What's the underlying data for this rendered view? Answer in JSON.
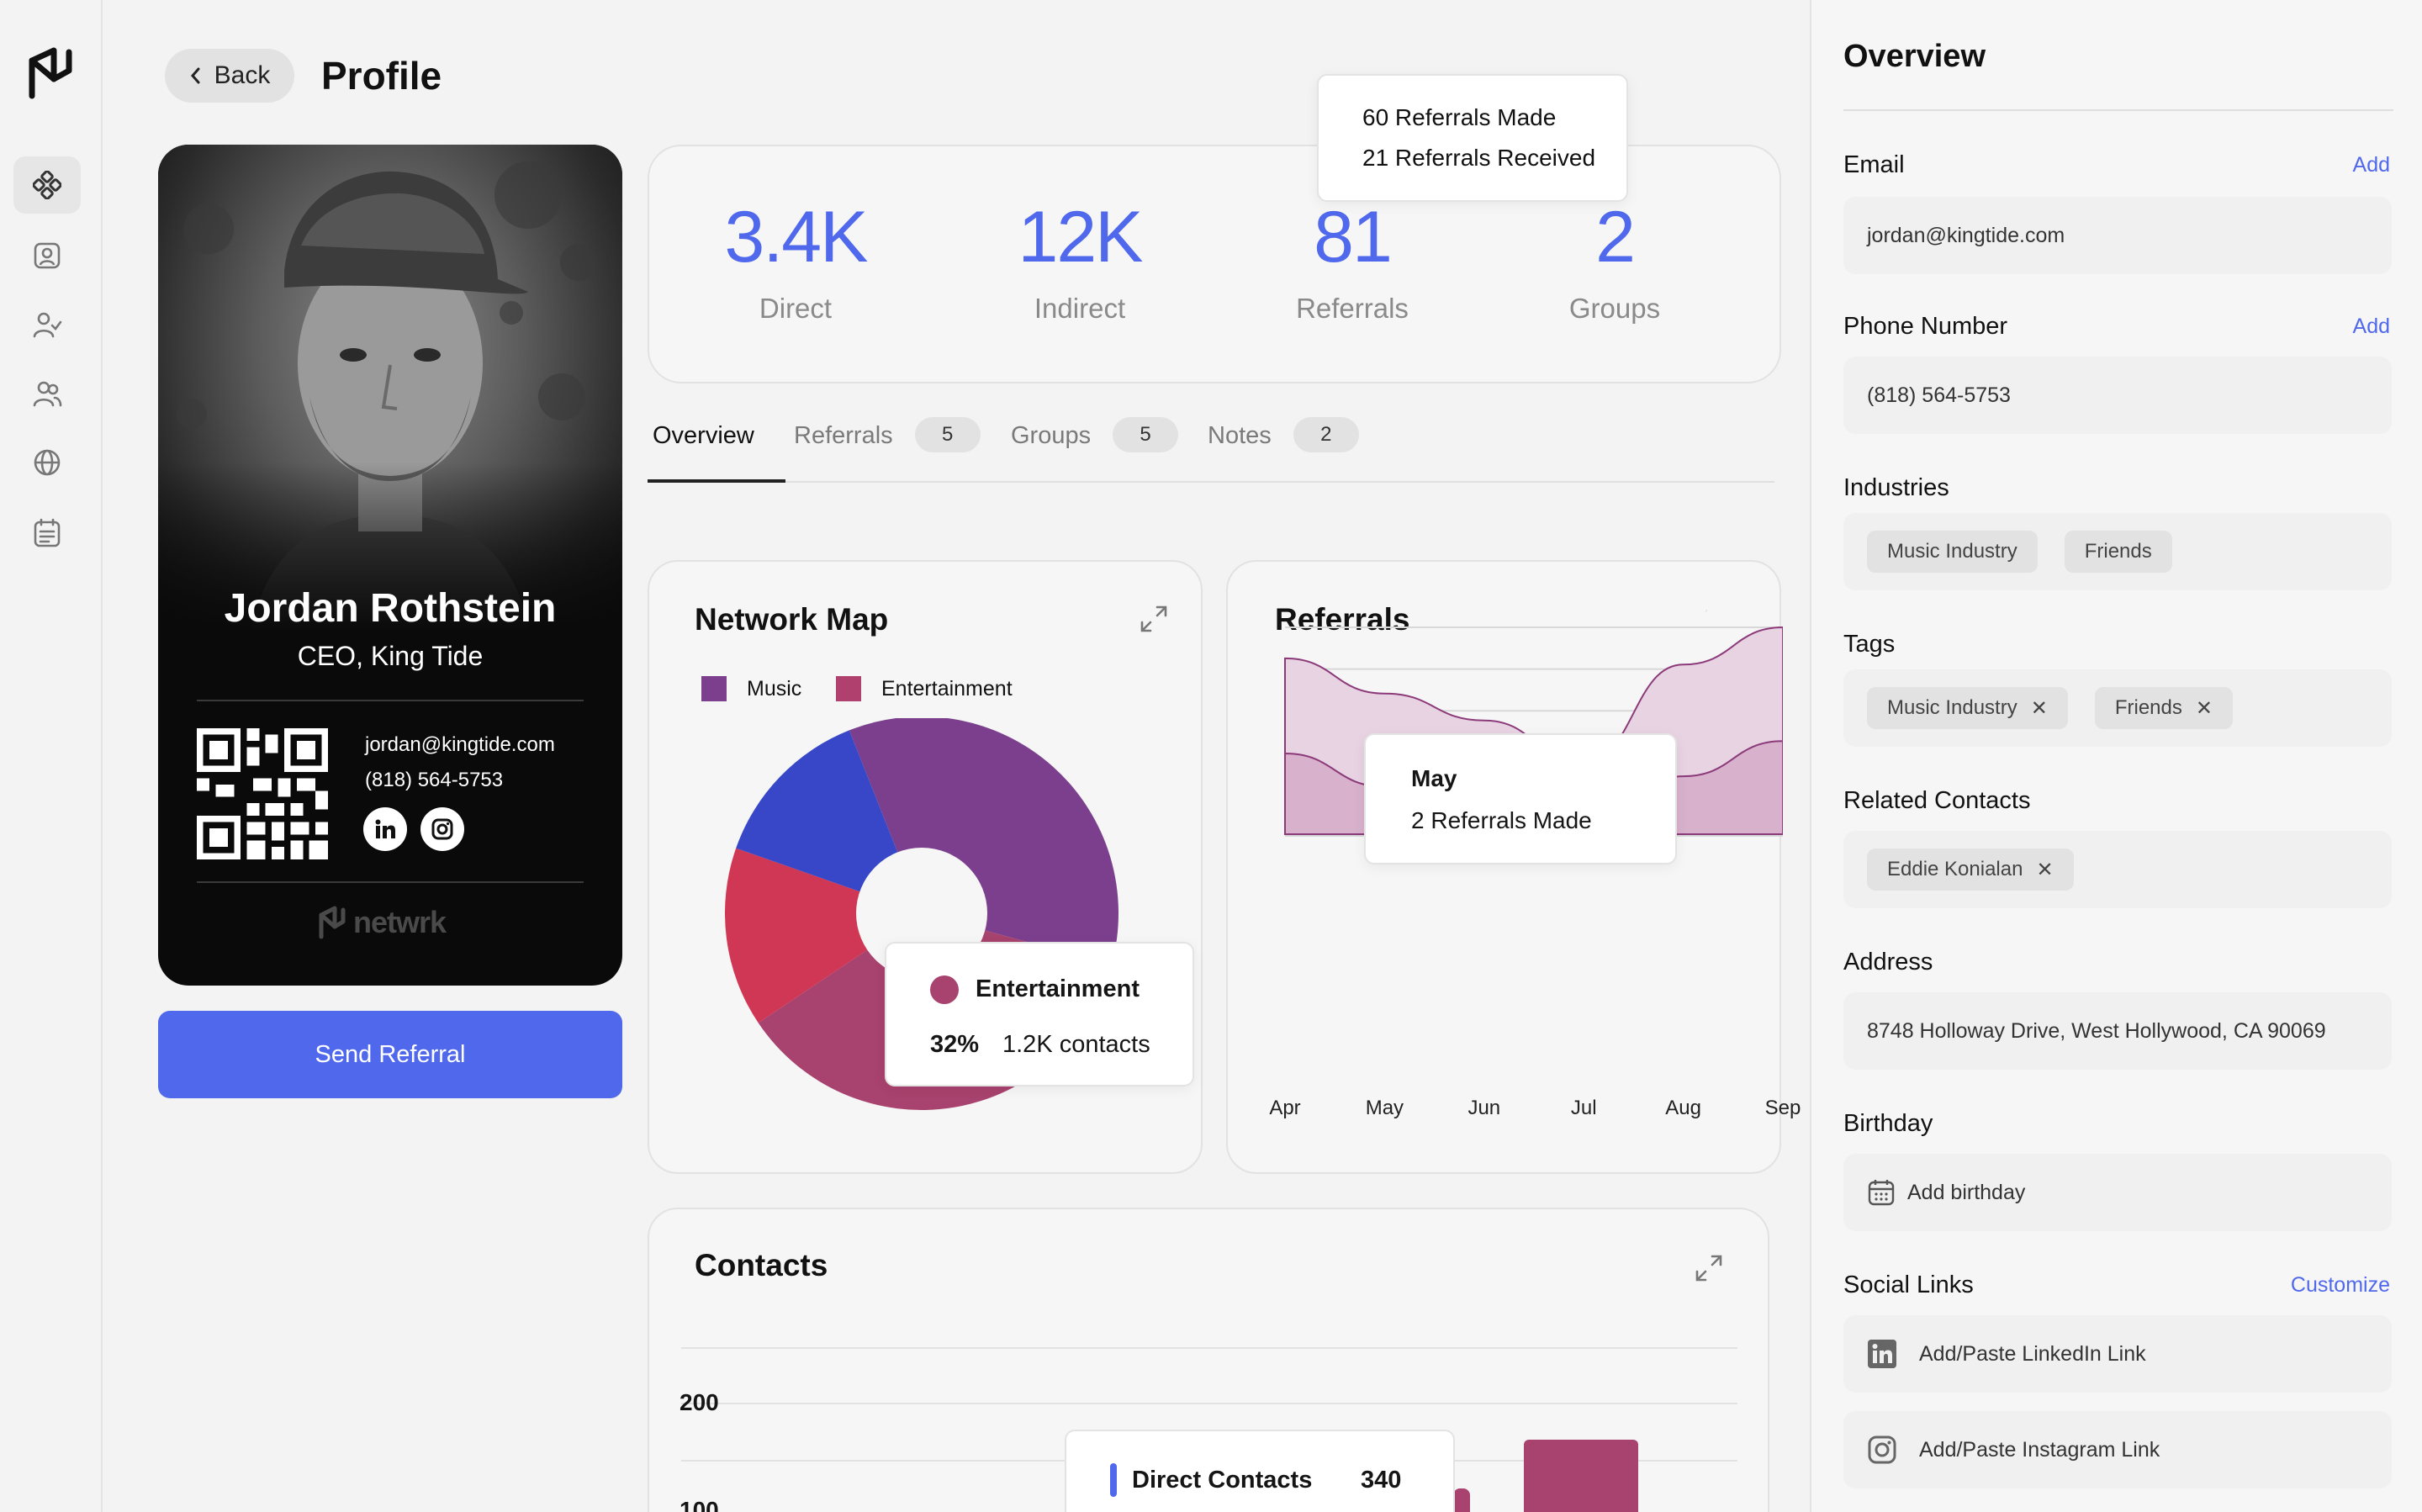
{
  "header": {
    "back_label": "Back",
    "title": "Profile"
  },
  "sidebar": {
    "items": [
      "logo-icon",
      "dashboard-icon",
      "contact-card-icon",
      "user-check-icon",
      "users-icon",
      "globe-icon",
      "calendar-list-icon"
    ]
  },
  "profile_card": {
    "name": "Jordan Rothstein",
    "title": "CEO, King Tide",
    "email": "jordan@kingtide.com",
    "phone": "(818) 564-5753",
    "brand": "netwrk",
    "send_referral": "Send Referral"
  },
  "stats": [
    {
      "value": "3.4K",
      "label": "Direct"
    },
    {
      "value": "12K",
      "label": "Indirect"
    },
    {
      "value": "81",
      "label": "Referrals"
    },
    {
      "value": "2",
      "label": "Groups"
    }
  ],
  "stats_tooltip": {
    "line1": "60 Referrals Made",
    "line2": "21 Referrals Received"
  },
  "tabs": [
    {
      "label": "Overview",
      "count": null
    },
    {
      "label": "Referrals",
      "count": "5"
    },
    {
      "label": "Groups",
      "count": "5"
    },
    {
      "label": "Notes",
      "count": "2"
    }
  ],
  "network_map": {
    "title": "Network Map",
    "legend": [
      {
        "name": "Music",
        "color": "#7b3f8e"
      },
      {
        "name": "Entertainment",
        "color": "#b0406e"
      }
    ],
    "tooltip": {
      "name": "Entertainment",
      "percent": "32%",
      "value": "1.2K contacts"
    }
  },
  "referrals_chart": {
    "title": "Referrals",
    "tooltip": {
      "month": "May",
      "value": "2 Referrals Made"
    }
  },
  "contacts_chart": {
    "title": "Contacts",
    "y_tick": "200",
    "y_tick2": "100",
    "tooltip": {
      "label": "Direct Contacts",
      "value": "340"
    }
  },
  "chart_data": [
    {
      "type": "pie",
      "title": "Network Map",
      "series": [
        {
          "name": "Music",
          "values": [
            31
          ]
        },
        {
          "name": "Entertainment",
          "values": [
            32
          ]
        }
      ],
      "slices": [
        {
          "label": "Music (purple)",
          "value": 31,
          "color": "#7b3f8e"
        },
        {
          "label": "Entertainment",
          "value": 32,
          "color": "#a8426e"
        },
        {
          "label": "Red",
          "value": 13,
          "color": "#cf3755"
        },
        {
          "label": "Blue",
          "value": 12,
          "color": "#3747c8"
        }
      ]
    },
    {
      "type": "area",
      "title": "Referrals",
      "categories": [
        "Apr",
        "May",
        "Jun",
        "Jul",
        "Aug",
        "Sep"
      ],
      "series": [
        {
          "values": [
            3.9,
            2.3,
            3.2,
            0.5,
            2.8,
            4.5
          ]
        },
        {
          "values": [
            8.5,
            6.8,
            5.5,
            3.5,
            8.2,
            10
          ]
        }
      ]
    },
    {
      "type": "bar",
      "title": "Contacts",
      "yticks": [
        "200",
        "100"
      ],
      "values": [
        340
      ]
    }
  ],
  "overview": {
    "title": "Overview",
    "email_label": "Email",
    "email_add": "Add",
    "email_value": "jordan@kingtide.com",
    "phone_label": "Phone Number",
    "phone_add": "Add",
    "phone_value": "(818) 564-5753",
    "industries_label": "Industries",
    "industries": [
      "Music Industry",
      "Friends"
    ],
    "tags_label": "Tags",
    "tags": [
      "Music Industry",
      "Friends"
    ],
    "related_label": "Related Contacts",
    "related": [
      "Eddie Konialan"
    ],
    "address_label": "Address",
    "address_value": "8748 Holloway Drive, West Hollywood, CA 90069",
    "birthday_label": "Birthday",
    "birthday_placeholder": "Add birthday",
    "social_label": "Social Links",
    "social_customize": "Customize",
    "linkedin_placeholder": "Add/Paste LinkedIn Link",
    "instagram_placeholder": "Add/Paste Instagram Link"
  }
}
